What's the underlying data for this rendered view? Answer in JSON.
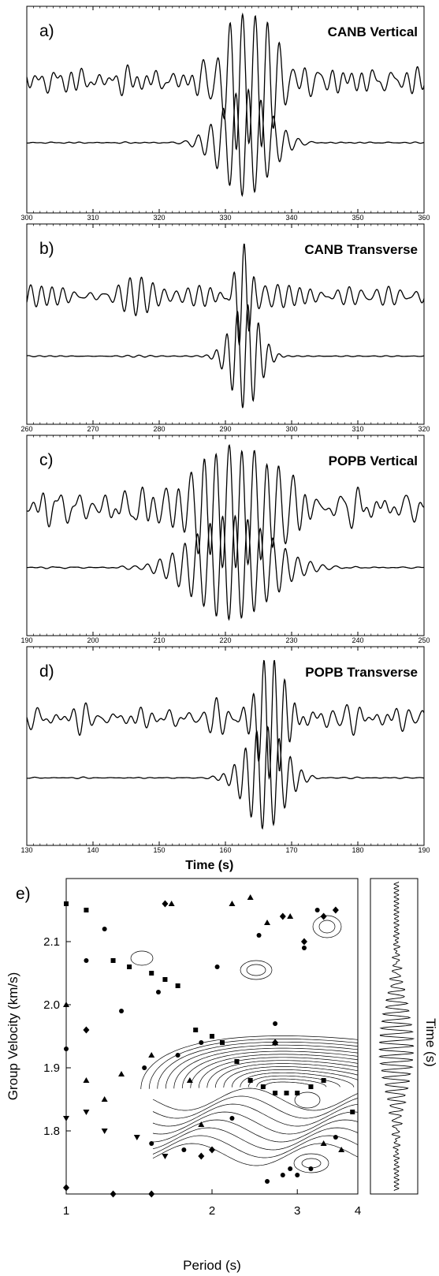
{
  "chart_data": [
    {
      "type": "line",
      "panel_label": "a)",
      "title": "CANB Vertical",
      "xlim": [
        300,
        360
      ],
      "ticks": [
        300,
        310,
        320,
        330,
        340,
        350,
        360
      ],
      "series": [
        {
          "kind": "noisy",
          "packet_center": 334,
          "packet_width": 6,
          "period": 1.9
        },
        {
          "kind": "filtered",
          "packet_center": 333,
          "packet_width": 5,
          "period": 1.9
        }
      ]
    },
    {
      "type": "line",
      "panel_label": "b)",
      "title": "CANB Transverse",
      "xlim": [
        260,
        320
      ],
      "ticks": [
        260,
        270,
        280,
        290,
        300,
        310,
        320
      ],
      "series": [
        {
          "kind": "noisy",
          "packet_center": 292.5,
          "packet_width": 1.5,
          "period": 1.6
        },
        {
          "kind": "filtered",
          "packet_center": 293,
          "packet_width": 3,
          "period": 1.6
        }
      ]
    },
    {
      "type": "line",
      "panel_label": "c)",
      "title": "POPB Vertical",
      "xlim": [
        190,
        250
      ],
      "ticks": [
        190,
        200,
        210,
        220,
        230,
        240,
        250
      ],
      "series": [
        {
          "kind": "noisy",
          "packet_center": 222,
          "packet_width": 9,
          "period": 1.9
        },
        {
          "kind": "filtered",
          "packet_center": 221,
          "packet_width": 8,
          "period": 1.9
        }
      ]
    },
    {
      "type": "line",
      "panel_label": "d)",
      "title": "POPB Transverse",
      "xlim": [
        130,
        190
      ],
      "ticks": [
        130,
        140,
        150,
        160,
        170,
        180,
        190
      ],
      "xlabel": "Time (s)",
      "series": [
        {
          "kind": "noisy",
          "packet_center": 167,
          "packet_width": 3,
          "period": 1.6
        },
        {
          "kind": "filtered",
          "packet_center": 166,
          "packet_width": 4,
          "period": 1.7
        }
      ]
    },
    {
      "type": "scatter",
      "panel_label": "e)",
      "xlabel": "Period (s)",
      "ylabel": "Group Velocity (km/s)",
      "side_label": "Time (s)",
      "x_scale": "log",
      "xlim": [
        1,
        4
      ],
      "ylim": [
        1.7,
        2.2
      ],
      "x_ticks": [
        1,
        2,
        3,
        4
      ],
      "y_ticks": [
        1.8,
        1.9,
        2.0,
        2.1
      ],
      "contours": {
        "center_period": 2.8,
        "center_velocity": 1.87
      },
      "series": [
        {
          "marker": "square",
          "x": [
            1,
            1.1,
            1.25,
            1.35,
            1.5,
            1.6,
            1.7,
            1.85,
            2.0,
            2.1,
            2.25,
            2.4,
            2.55,
            2.7,
            2.85,
            3.0,
            3.2,
            3.4,
            3.9
          ],
          "y": [
            2.16,
            2.15,
            2.07,
            2.06,
            2.05,
            2.04,
            2.03,
            1.96,
            1.95,
            1.94,
            1.91,
            1.88,
            1.87,
            1.86,
            1.86,
            1.86,
            1.87,
            1.88,
            1.83
          ]
        },
        {
          "marker": "circle",
          "x": [
            1,
            1.1,
            1.2,
            1.3,
            1.45,
            1.55,
            1.7,
            1.9,
            2.05,
            2.2,
            2.5,
            2.7,
            2.9,
            3.1,
            3.3,
            3.6,
            1.5,
            1.75,
            2.6,
            2.8,
            3.0,
            3.2
          ],
          "y": [
            1.93,
            2.07,
            2.12,
            1.99,
            1.9,
            2.02,
            1.92,
            1.94,
            2.06,
            1.82,
            2.11,
            1.97,
            1.74,
            2.09,
            2.15,
            1.79,
            1.78,
            1.77,
            1.72,
            1.73,
            1.73,
            1.74
          ]
        },
        {
          "marker": "triangle",
          "x": [
            1,
            1.1,
            1.2,
            1.3,
            1.5,
            1.65,
            1.8,
            2.2,
            2.4,
            2.6,
            2.9,
            3.4,
            3.7,
            2.7,
            1.9
          ],
          "y": [
            2.0,
            1.88,
            1.85,
            1.89,
            1.92,
            2.16,
            1.88,
            2.16,
            2.17,
            2.13,
            2.14,
            1.78,
            1.77,
            1.94,
            1.81
          ]
        },
        {
          "marker": "inverted-triangle",
          "x": [
            1,
            1.1,
            1.2,
            1.4,
            1.6
          ],
          "y": [
            1.82,
            1.83,
            1.8,
            1.79,
            1.76
          ]
        },
        {
          "marker": "diamond",
          "x": [
            1,
            1.1,
            1.25,
            1.5,
            1.6,
            1.9,
            2.0,
            2.7,
            2.8,
            3.1,
            3.4,
            3.6
          ],
          "y": [
            1.71,
            1.96,
            1.7,
            1.7,
            2.16,
            1.76,
            1.77,
            1.94,
            2.14,
            2.1,
            2.14,
            2.15
          ]
        }
      ]
    }
  ]
}
